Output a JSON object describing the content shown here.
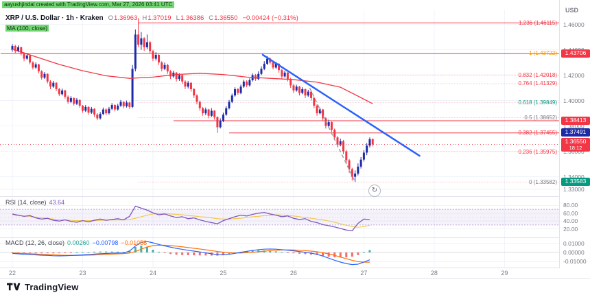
{
  "header": {
    "credit": "aayushjindal created with TradingView.com, Mar 27, 2026 03:41 UTC",
    "currency": "USD"
  },
  "legend": {
    "symbol": "XRP / U.S. Dollar · 1h · Kraken",
    "o_label": "O",
    "o": "1.36963",
    "h_label": "H",
    "h": "1.37019",
    "l_label": "L",
    "l": "1.36386",
    "c_label": "C",
    "c": "1.36550",
    "change": "−0.00424 (−0.31%)",
    "ma_label": "MA (100, close)"
  },
  "rsi_label": {
    "name": "RSI (14, close)",
    "value": "43.64"
  },
  "macd_label": {
    "name": "MACD (12, 26, close)",
    "hist": "0.00260",
    "macd": "−0.00798",
    "signal": "−0.01058"
  },
  "footer": {
    "brand": "TradingView"
  },
  "refresh_glyph": "↻",
  "colors": {
    "up": "#1e2ba6",
    "down": "#f23645",
    "ma": "#f23645",
    "trend": "#2962ff",
    "projection": "#9598a1",
    "ray": "#f23645",
    "rsi": "#7e57c2",
    "rsi_ma": "#f1c232",
    "macd": "#2962ff",
    "signal": "#ff6d00",
    "hist_pos": "#26a69a",
    "hist_neg": "#ef5350",
    "grid": "#f0f3fa",
    "separator": "#e0e3eb",
    "axis_text": "#787b86",
    "badge_red": "#f23645",
    "badge_navy": "#1e2ba6",
    "badge_green": "#089981",
    "highlight": "#72d572"
  },
  "chart_data": {
    "type": "candlestick",
    "symbol": "XRP/USD",
    "interval": "1h",
    "exchange": "Kraken",
    "last_price": 1.3655,
    "candles": [
      [
        1.44,
        1.4445,
        1.4385,
        1.443
      ],
      [
        1.443,
        1.444,
        1.4375,
        1.439
      ],
      [
        1.439,
        1.4435,
        1.438,
        1.442
      ],
      [
        1.442,
        1.4425,
        1.4355,
        1.437
      ],
      [
        1.437,
        1.438,
        1.431,
        1.433
      ],
      [
        1.433,
        1.437,
        1.432,
        1.4355
      ],
      [
        1.4355,
        1.436,
        1.4285,
        1.43
      ],
      [
        1.43,
        1.431,
        1.4245,
        1.426
      ],
      [
        1.426,
        1.43,
        1.425,
        1.4285
      ],
      [
        1.4285,
        1.429,
        1.4215,
        1.423
      ],
      [
        1.423,
        1.424,
        1.4165,
        1.418
      ],
      [
        1.418,
        1.4225,
        1.417,
        1.421
      ],
      [
        1.421,
        1.4215,
        1.4135,
        1.415
      ],
      [
        1.415,
        1.416,
        1.409,
        1.411
      ],
      [
        1.411,
        1.4155,
        1.41,
        1.414
      ],
      [
        1.414,
        1.4145,
        1.4075,
        1.409
      ],
      [
        1.409,
        1.41,
        1.4035,
        1.405
      ],
      [
        1.405,
        1.4095,
        1.404,
        1.408
      ],
      [
        1.408,
        1.4085,
        1.4015,
        1.403
      ],
      [
        1.403,
        1.404,
        1.3975,
        1.399
      ],
      [
        1.399,
        1.4035,
        1.398,
        1.402
      ],
      [
        1.402,
        1.4025,
        1.396,
        1.3975
      ],
      [
        1.3975,
        1.402,
        1.3965,
        1.4005
      ],
      [
        1.4005,
        1.401,
        1.3945,
        1.396
      ],
      [
        1.396,
        1.3965,
        1.3905,
        1.392
      ],
      [
        1.392,
        1.3965,
        1.391,
        1.395
      ],
      [
        1.395,
        1.3955,
        1.389,
        1.3905
      ],
      [
        1.3905,
        1.395,
        1.3895,
        1.3935
      ],
      [
        1.3935,
        1.394,
        1.387,
        1.389
      ],
      [
        1.389,
        1.39,
        1.3845,
        1.386
      ],
      [
        1.386,
        1.391,
        1.385,
        1.3895
      ],
      [
        1.3895,
        1.3945,
        1.3885,
        1.393
      ],
      [
        1.393,
        1.394,
        1.3885,
        1.39
      ],
      [
        1.39,
        1.395,
        1.389,
        1.3935
      ],
      [
        1.3935,
        1.398,
        1.3925,
        1.3965
      ],
      [
        1.3965,
        1.397,
        1.3915,
        1.393
      ],
      [
        1.393,
        1.3975,
        1.392,
        1.396
      ],
      [
        1.396,
        1.4005,
        1.395,
        1.399
      ],
      [
        1.399,
        1.3995,
        1.394,
        1.3955
      ],
      [
        1.3955,
        1.4,
        1.3945,
        1.3985
      ],
      [
        1.3985,
        1.399,
        1.3935,
        1.395
      ],
      [
        1.395,
        1.428,
        1.394,
        1.425
      ],
      [
        1.425,
        1.456,
        1.423,
        1.452
      ],
      [
        1.452,
        1.465,
        1.442,
        1.444
      ],
      [
        1.444,
        1.454,
        1.44,
        1.449
      ],
      [
        1.449,
        1.45,
        1.439,
        1.442
      ],
      [
        1.442,
        1.452,
        1.4405,
        1.446
      ],
      [
        1.446,
        1.447,
        1.437,
        1.439
      ],
      [
        1.439,
        1.44,
        1.431,
        1.433
      ],
      [
        1.433,
        1.438,
        1.4315,
        1.436
      ],
      [
        1.436,
        1.4365,
        1.428,
        1.43
      ],
      [
        1.43,
        1.431,
        1.423,
        1.425
      ],
      [
        1.425,
        1.43,
        1.424,
        1.428
      ],
      [
        1.428,
        1.429,
        1.421,
        1.423
      ],
      [
        1.423,
        1.424,
        1.417,
        1.419
      ],
      [
        1.419,
        1.4235,
        1.418,
        1.422
      ],
      [
        1.422,
        1.4225,
        1.415,
        1.417
      ],
      [
        1.417,
        1.4215,
        1.4155,
        1.42
      ],
      [
        1.42,
        1.4205,
        1.413,
        1.415
      ],
      [
        1.415,
        1.416,
        1.409,
        1.411
      ],
      [
        1.411,
        1.4155,
        1.4095,
        1.414
      ],
      [
        1.414,
        1.4145,
        1.407,
        1.409
      ],
      [
        1.409,
        1.41,
        1.402,
        1.404
      ],
      [
        1.404,
        1.405,
        1.397,
        1.399
      ],
      [
        1.399,
        1.4,
        1.392,
        1.394
      ],
      [
        1.394,
        1.395,
        1.388,
        1.39
      ],
      [
        1.39,
        1.3945,
        1.3885,
        1.393
      ],
      [
        1.393,
        1.3935,
        1.386,
        1.388
      ],
      [
        1.388,
        1.394,
        1.387,
        1.392
      ],
      [
        1.392,
        1.3925,
        1.385,
        1.387
      ],
      [
        1.387,
        1.3875,
        1.3745,
        1.379
      ],
      [
        1.379,
        1.386,
        1.378,
        1.384
      ],
      [
        1.384,
        1.3905,
        1.383,
        1.389
      ],
      [
        1.389,
        1.3955,
        1.388,
        1.394
      ],
      [
        1.394,
        1.4005,
        1.393,
        1.399
      ],
      [
        1.399,
        1.4055,
        1.398,
        1.404
      ],
      [
        1.404,
        1.4105,
        1.403,
        1.409
      ],
      [
        1.409,
        1.41,
        1.4045,
        1.406
      ],
      [
        1.406,
        1.4125,
        1.405,
        1.411
      ],
      [
        1.411,
        1.4165,
        1.41,
        1.415
      ],
      [
        1.415,
        1.416,
        1.4105,
        1.412
      ],
      [
        1.412,
        1.4175,
        1.411,
        1.416
      ],
      [
        1.416,
        1.4215,
        1.415,
        1.42
      ],
      [
        1.42,
        1.421,
        1.4155,
        1.417
      ],
      [
        1.417,
        1.423,
        1.416,
        1.421
      ],
      [
        1.421,
        1.427,
        1.42,
        1.425
      ],
      [
        1.425,
        1.431,
        1.424,
        1.429
      ],
      [
        1.429,
        1.435,
        1.428,
        1.433
      ],
      [
        1.433,
        1.434,
        1.4285,
        1.43
      ],
      [
        1.43,
        1.431,
        1.4245,
        1.426
      ],
      [
        1.426,
        1.4305,
        1.425,
        1.429
      ],
      [
        1.429,
        1.4295,
        1.422,
        1.424
      ],
      [
        1.424,
        1.425,
        1.417,
        1.419
      ],
      [
        1.419,
        1.4235,
        1.418,
        1.422
      ],
      [
        1.422,
        1.4225,
        1.415,
        1.417
      ],
      [
        1.417,
        1.418,
        1.41,
        1.412
      ],
      [
        1.412,
        1.413,
        1.406,
        1.408
      ],
      [
        1.408,
        1.4125,
        1.407,
        1.411
      ],
      [
        1.411,
        1.4115,
        1.404,
        1.406
      ],
      [
        1.406,
        1.4105,
        1.405,
        1.409
      ],
      [
        1.409,
        1.4095,
        1.402,
        1.404
      ],
      [
        1.404,
        1.4085,
        1.403,
        1.407
      ],
      [
        1.407,
        1.4075,
        1.4,
        1.402
      ],
      [
        1.402,
        1.403,
        1.394,
        1.396
      ],
      [
        1.396,
        1.397,
        1.388,
        1.39
      ],
      [
        1.39,
        1.3945,
        1.389,
        1.393
      ],
      [
        1.393,
        1.3935,
        1.384,
        1.386
      ],
      [
        1.386,
        1.387,
        1.378,
        1.38
      ],
      [
        1.38,
        1.385,
        1.379,
        1.383
      ],
      [
        1.383,
        1.3835,
        1.375,
        1.377
      ],
      [
        1.377,
        1.378,
        1.369,
        1.371
      ],
      [
        1.371,
        1.372,
        1.363,
        1.365
      ],
      [
        1.365,
        1.37,
        1.364,
        1.368
      ],
      [
        1.368,
        1.369,
        1.358,
        1.36
      ],
      [
        1.36,
        1.361,
        1.35,
        1.353
      ],
      [
        1.353,
        1.354,
        1.343,
        1.346
      ],
      [
        1.346,
        1.347,
        1.337,
        1.34
      ],
      [
        1.34,
        1.345,
        1.3359,
        1.3425
      ],
      [
        1.3425,
        1.3505,
        1.341,
        1.348
      ],
      [
        1.348,
        1.3555,
        1.3465,
        1.3535
      ],
      [
        1.3535,
        1.361,
        1.352,
        1.359
      ],
      [
        1.359,
        1.3665,
        1.357,
        1.3645
      ],
      [
        1.3645,
        1.371,
        1.363,
        1.3695
      ],
      [
        1.36963,
        1.37019,
        1.36386,
        1.3655
      ]
    ],
    "ma_points": [
      [
        0,
        1.4405
      ],
      [
        8,
        1.4345
      ],
      [
        16,
        1.4285
      ],
      [
        24,
        1.4235
      ],
      [
        32,
        1.4195
      ],
      [
        40,
        1.4175
      ],
      [
        48,
        1.4185
      ],
      [
        56,
        1.4205
      ],
      [
        64,
        1.4215
      ],
      [
        72,
        1.4205
      ],
      [
        80,
        1.4185
      ],
      [
        88,
        1.4175
      ],
      [
        96,
        1.4165
      ],
      [
        104,
        1.4145
      ],
      [
        112,
        1.4105
      ],
      [
        118,
        1.4035
      ],
      [
        123,
        1.3975
      ]
    ],
    "trendline": {
      "i1": 85.5,
      "p1": 1.436,
      "i2": 139,
      "p2": 1.3565
    },
    "projection": {
      "i1": 101.5,
      "p1": 1.41,
      "i2": 117,
      "p2": 1.336
    },
    "rays": [
      {
        "price": 1.46115,
        "from_i": 43
      },
      {
        "price": 1.43722,
        "from_i": -4
      },
      {
        "price": 1.38413,
        "from_i": 55
      },
      {
        "price": 1.37455,
        "from_i": 74
      }
    ],
    "fib_guide_prices": [
      1.42018,
      1.41329,
      1.39849,
      1.38652,
      1.35975,
      1.33582
    ],
    "fib_levels": [
      {
        "k": "1.236",
        "price": 1.46115,
        "label": "1.236 (1.46115)",
        "color": "#f23645"
      },
      {
        "k": "1",
        "price": 1.43722,
        "label": "1 (1.43722)",
        "color": "#ff9800"
      },
      {
        "k": "0.832",
        "price": 1.42018,
        "label": "0.832 (1.42018)",
        "color": "#f23645"
      },
      {
        "k": "0.764",
        "price": 1.41329,
        "label": "0.764 (1.41329)",
        "color": "#f23645"
      },
      {
        "k": "0.618",
        "price": 1.39849,
        "label": "0.618 (1.39849)",
        "color": "#089981"
      },
      {
        "k": "0.5",
        "price": 1.38652,
        "label": "0.5 (1.38652)",
        "color": "#787b86"
      },
      {
        "k": "0.382",
        "price": 1.37455,
        "label": "0.382 (1.37455)",
        "color": "#f23645"
      },
      {
        "k": "0.236",
        "price": 1.35975,
        "label": "0.236 (1.35975)",
        "color": "#f23645"
      },
      {
        "k": "0",
        "price": 1.33582,
        "label": "0 (1.33582)",
        "color": "#787b86"
      }
    ],
    "price_ticks": [
      1.46,
      1.44,
      1.42,
      1.4,
      1.38,
      1.36,
      1.34,
      1.33
    ],
    "time_ticks": [
      {
        "i": 0,
        "label": "22"
      },
      {
        "i": 24,
        "label": "23"
      },
      {
        "i": 48,
        "label": "24"
      },
      {
        "i": 72,
        "label": "25"
      },
      {
        "i": 96,
        "label": "26"
      },
      {
        "i": 120,
        "label": "27"
      },
      {
        "i": 144,
        "label": "28"
      },
      {
        "i": 168,
        "label": "29"
      }
    ],
    "badges": [
      {
        "text": "1.43706",
        "price": 1.43706,
        "bg": "#f23645"
      },
      {
        "text": "1.38413",
        "price": 1.38413,
        "bg": "#f23645"
      },
      {
        "text": "1.37491",
        "price": 1.37491,
        "bg": "#1e2ba6"
      },
      {
        "text": "1.36550",
        "price": 1.3655,
        "bg": "#f23645",
        "sub": "18:12"
      },
      {
        "text": "1.33583",
        "price": 1.33583,
        "bg": "#089981"
      }
    ],
    "rsi": {
      "step_i": 2,
      "band": [
        30,
        70
      ],
      "ticks": [
        80,
        60,
        40,
        20
      ],
      "values": [
        58,
        55,
        52,
        54,
        48,
        45,
        47,
        42,
        40,
        43,
        39,
        37,
        41,
        38,
        42,
        45,
        42,
        44,
        46,
        43,
        52,
        78,
        73,
        68,
        61,
        56,
        58,
        53,
        49,
        51,
        46,
        48,
        43,
        39,
        36,
        33,
        41,
        46,
        51,
        55,
        53,
        57,
        60,
        62,
        58,
        55,
        51,
        53,
        47,
        44,
        46,
        39,
        36,
        31,
        28,
        25,
        21,
        17,
        15,
        34,
        45,
        43.6
      ],
      "ma": [
        56,
        54,
        53,
        52,
        50,
        48,
        47,
        45,
        44,
        43,
        42,
        41,
        41,
        41,
        41,
        42,
        42,
        43,
        43,
        43,
        44,
        47,
        51,
        55,
        58,
        59,
        59,
        58,
        57,
        56,
        54,
        53,
        51,
        50,
        48,
        46,
        45,
        45,
        46,
        47,
        49,
        51,
        52,
        54,
        55,
        56,
        55,
        54,
        53,
        51,
        49,
        47,
        45,
        43,
        40,
        37,
        33,
        29,
        26,
        24,
        26,
        29
      ]
    },
    "macd": {
      "step_i": 2,
      "ticks": [
        0.01,
        0,
        -0.01
      ],
      "macd": [
        -0.001,
        -0.0015,
        -0.002,
        -0.0022,
        -0.0026,
        -0.003,
        -0.0032,
        -0.0036,
        -0.0038,
        -0.0036,
        -0.0033,
        -0.003,
        -0.0026,
        -0.0022,
        -0.0018,
        -0.0014,
        -0.0011,
        -0.0008,
        -0.0006,
        -0.0005,
        0.0015,
        0.007,
        0.011,
        0.012,
        0.0105,
        0.0088,
        0.0072,
        0.0058,
        0.0045,
        0.0034,
        0.0024,
        0.0015,
        0.0006,
        -0.0004,
        -0.0014,
        -0.0024,
        -0.0026,
        -0.002,
        -0.001,
        0.0002,
        0.0012,
        0.0022,
        0.003,
        0.0036,
        0.0038,
        0.0036,
        0.003,
        0.0024,
        0.0018,
        0.001,
        0.0002,
        -0.0008,
        -0.002,
        -0.004,
        -0.0062,
        -0.0085,
        -0.0105,
        -0.0122,
        -0.0132,
        -0.0128,
        -0.0105,
        -0.008
      ],
      "signal": [
        -0.0005,
        -0.0008,
        -0.0011,
        -0.0014,
        -0.0017,
        -0.002,
        -0.0023,
        -0.0026,
        -0.0029,
        -0.0031,
        -0.0032,
        -0.0032,
        -0.0031,
        -0.0029,
        -0.0027,
        -0.0024,
        -0.0021,
        -0.0018,
        -0.0015,
        -0.0012,
        -0.0006,
        0.001,
        0.0035,
        0.006,
        0.0075,
        0.008,
        0.0079,
        0.0075,
        0.0069,
        0.0062,
        0.0054,
        0.0046,
        0.0038,
        0.0029,
        0.002,
        0.0011,
        0.0003,
        -0.0003,
        -0.0006,
        -0.0006,
        -0.0003,
        0.0002,
        0.0008,
        0.0014,
        0.002,
        0.0024,
        0.0027,
        0.0028,
        0.0027,
        0.0024,
        0.002,
        0.0015,
        0.0008,
        -0.0002,
        -0.0016,
        -0.0032,
        -0.005,
        -0.0068,
        -0.0086,
        -0.01,
        -0.0106,
        -0.0106
      ]
    }
  }
}
